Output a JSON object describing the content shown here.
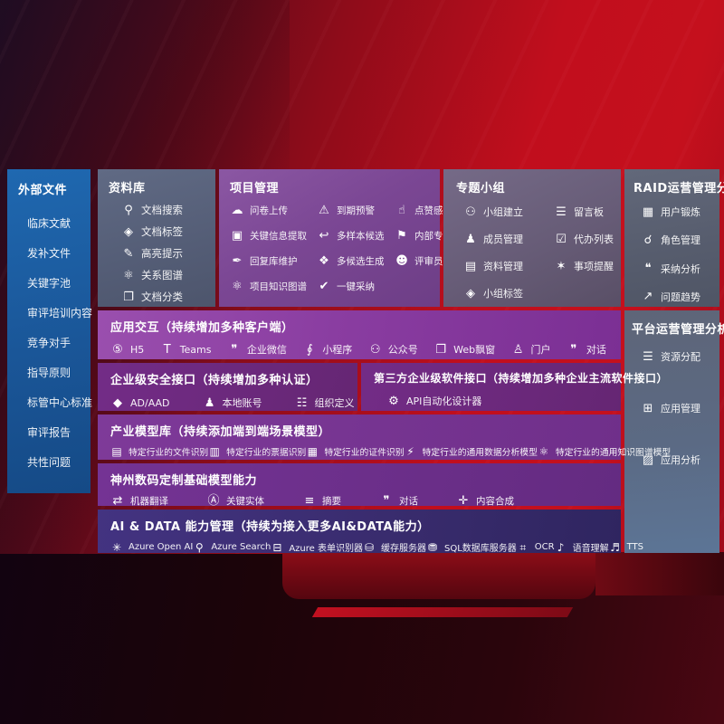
{
  "colors": {
    "bg_red": "#c10e1d",
    "sidebar_blue": "#1a5698",
    "purple": "#7b4794",
    "slate": "#565c6d",
    "indigo": "#382b6c"
  },
  "icons": {
    "doc-search": "⚲",
    "doc-tag": "◈",
    "highlight": "✎",
    "relation-graph": "⚛",
    "doc-category": "❐",
    "cloud-upload": "☁",
    "alarm": "⚠",
    "thumbs-up": "☝",
    "key-info": "▣",
    "multi-sample": "↩",
    "expert-rank": "⚑",
    "reply-maintain": "✒",
    "multi-candidate": "❖",
    "reviewer-portrait": "☻",
    "one-click-adopt": "✔",
    "knowledge-graph": "⚛",
    "group-create": "⚇",
    "member-manage": "♟",
    "material-manage": "▤",
    "group-tag": "◈",
    "bbs": "☰",
    "todo-list": "☑",
    "remind": "✶",
    "user-portrait": "▦",
    "role-manage": "☌",
    "adopt-analysis": "❝",
    "issue-trend": "↗",
    "resource-alloc": "☰",
    "app-manage": "⊞",
    "app-analysis": "▨",
    "h5": "⑤",
    "teams": "T",
    "wechat-work": "❞",
    "mini-program": "∮",
    "official-account": "⚇",
    "web-popup": "❐",
    "portal": "♙",
    "chat": "❞",
    "ad-aad": "◆",
    "local-account": "♟",
    "org-define": "☷",
    "api-designer": "⚙",
    "file-recog": "▤",
    "invoice-recog": "▥",
    "cert-recog": "▦",
    "data-model": "⚡",
    "kg-model": "⚛",
    "translate": "⇄",
    "key-entity": "Ⓐ",
    "summary": "≡",
    "dialog": "❞",
    "content-compose": "✛",
    "azure-openai": "✳",
    "azure-search": "⚲",
    "azure-form": "⊟",
    "cache-server": "⛁",
    "sql-server": "⛃",
    "ocr": "⌗",
    "speech": "♪",
    "tts": "♬"
  },
  "sidebar": {
    "title": "外部文件",
    "items": [
      {
        "label": "临床文献"
      },
      {
        "label": "发补文件"
      },
      {
        "label": "关键字池"
      },
      {
        "label": "审评培训内容"
      },
      {
        "label": "竞争对手"
      },
      {
        "label": "指导原则"
      },
      {
        "label": "标管中心标准"
      },
      {
        "label": "审评报告"
      },
      {
        "label": "共性问题"
      }
    ]
  },
  "panels": {
    "library": {
      "title": "资料库",
      "items": [
        {
          "icon": "doc-search",
          "label": "文档搜索"
        },
        {
          "icon": "doc-tag",
          "label": "文档标签"
        },
        {
          "icon": "highlight",
          "label": "高亮提示"
        },
        {
          "icon": "relation-graph",
          "label": "关系图谱"
        },
        {
          "icon": "doc-category",
          "label": "文档分类"
        }
      ]
    },
    "project": {
      "title": "项目管理",
      "items": [
        {
          "icon": "cloud-upload",
          "label": "问卷上传"
        },
        {
          "icon": "alarm",
          "label": "到期预警"
        },
        {
          "icon": "thumbs-up",
          "label": "点赞感谢"
        },
        {
          "icon": "key-info",
          "label": "关键信息提取"
        },
        {
          "icon": "multi-sample",
          "label": "多样本候选"
        },
        {
          "icon": "expert-rank",
          "label": "内部专家排名"
        },
        {
          "icon": "reply-maintain",
          "label": "回复库维护"
        },
        {
          "icon": "multi-candidate",
          "label": "多候选生成"
        },
        {
          "icon": "reviewer-portrait",
          "label": "评审员画像"
        },
        {
          "icon": "knowledge-graph",
          "label": "项目知识图谱"
        },
        {
          "icon": "one-click-adopt",
          "label": "一键采纳"
        }
      ]
    },
    "group": {
      "title": "专题小组",
      "items": [
        {
          "icon": "group-create",
          "label": "小组建立"
        },
        {
          "icon": "bbs",
          "label": "留言板"
        },
        {
          "icon": "member-manage",
          "label": "成员管理"
        },
        {
          "icon": "todo-list",
          "label": "代办列表"
        },
        {
          "icon": "material-manage",
          "label": "资料管理"
        },
        {
          "icon": "remind",
          "label": "事项提醒"
        },
        {
          "icon": "group-tag",
          "label": "小组标签"
        }
      ]
    },
    "raid": {
      "title": "RAID运营管理分析",
      "items": [
        {
          "icon": "user-portrait",
          "label": "用户锻炼"
        },
        {
          "icon": "role-manage",
          "label": "角色管理"
        },
        {
          "icon": "adopt-analysis",
          "label": "采纳分析"
        },
        {
          "icon": "issue-trend",
          "label": "问题趋势"
        }
      ]
    },
    "platform": {
      "title": "平台运营管理分析",
      "items": [
        {
          "icon": "resource-alloc",
          "label": "资源分配"
        },
        {
          "icon": "app-manage",
          "label": "应用管理"
        },
        {
          "icon": "app-analysis",
          "label": "应用分析"
        }
      ]
    },
    "interaction": {
      "title": "应用交互（持续增加多种客户端）",
      "items": [
        {
          "icon": "h5",
          "label": "H5"
        },
        {
          "icon": "teams",
          "label": "Teams"
        },
        {
          "icon": "wechat-work",
          "label": "企业微信"
        },
        {
          "icon": "mini-program",
          "label": "小程序"
        },
        {
          "icon": "official-account",
          "label": "公众号"
        },
        {
          "icon": "web-popup",
          "label": "Web飘窗"
        },
        {
          "icon": "portal",
          "label": "门户"
        },
        {
          "icon": "chat",
          "label": "对话"
        }
      ]
    },
    "security": {
      "title": "企业级安全接口（持续增加多种认证）",
      "items": [
        {
          "icon": "ad-aad",
          "label": "AD/AAD"
        },
        {
          "icon": "local-account",
          "label": "本地账号"
        },
        {
          "icon": "org-define",
          "label": "组织定义"
        }
      ]
    },
    "thirdparty": {
      "title": "第三方企业级软件接口（持续增加多种企业主流软件接口）",
      "items": [
        {
          "icon": "api-designer",
          "label": "API自动化设计器"
        }
      ]
    },
    "industry": {
      "title": "产业模型库（持续添加端到端场景模型）",
      "items": [
        {
          "icon": "file-recog",
          "label": "特定行业的文件识别"
        },
        {
          "icon": "invoice-recog",
          "label": "特定行业的票据识别"
        },
        {
          "icon": "cert-recog",
          "label": "特定行业的证件识别"
        },
        {
          "icon": "data-model",
          "label": "特定行业的通用数据分析模型"
        },
        {
          "icon": "kg-model",
          "label": "特定行业的通用知识图谱模型"
        }
      ]
    },
    "basemodel": {
      "title": "神州数码定制基础模型能力",
      "items": [
        {
          "icon": "translate",
          "label": "机器翻译"
        },
        {
          "icon": "key-entity",
          "label": "关键实体"
        },
        {
          "icon": "summary",
          "label": "摘要"
        },
        {
          "icon": "dialog",
          "label": "对话"
        },
        {
          "icon": "content-compose",
          "label": "内容合成"
        }
      ]
    },
    "aidata": {
      "title": "AI & DATA 能力管理（持续为接入更多AI&DATA能力）",
      "items": [
        {
          "icon": "azure-openai",
          "label": "Azure Open AI"
        },
        {
          "icon": "azure-search",
          "label": "Azure Search"
        },
        {
          "icon": "azure-form",
          "label": "Azure 表单识别器"
        },
        {
          "icon": "cache-server",
          "label": "缓存服务器"
        },
        {
          "icon": "sql-server",
          "label": "SQL数据库服务器"
        },
        {
          "icon": "ocr",
          "label": "OCR"
        },
        {
          "icon": "speech",
          "label": "语音理解"
        },
        {
          "icon": "tts",
          "label": "TTS"
        }
      ]
    }
  }
}
